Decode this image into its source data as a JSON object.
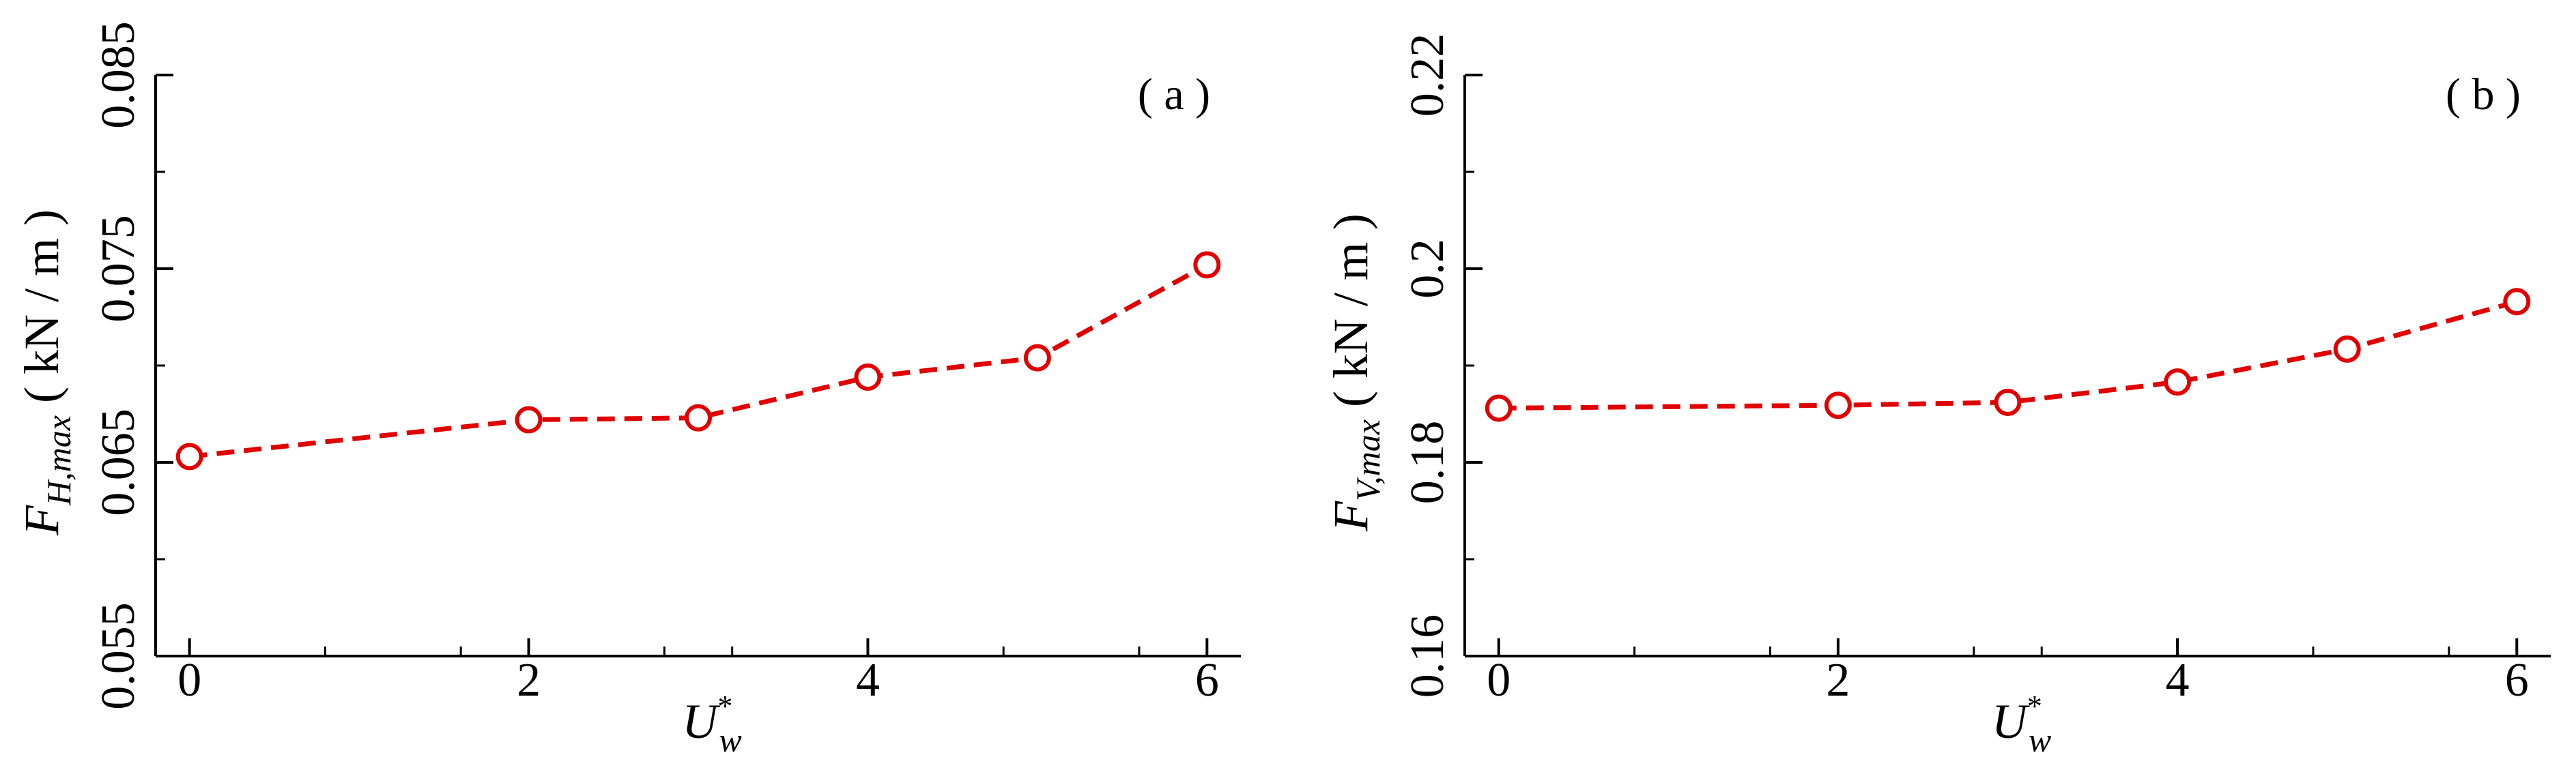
{
  "chart_data": [
    {
      "type": "line",
      "panel_label": "( a )",
      "ylabel": {
        "symbol": "F",
        "subscript": "H,max",
        "unit": " ( kN / m )"
      },
      "xlabel": {
        "symbol": "U",
        "superscript": "*",
        "subscript": "w"
      },
      "xlim": [
        -0.2,
        6.2
      ],
      "ylim": [
        0.055,
        0.085
      ],
      "xticks_major": [
        0,
        2,
        4,
        6
      ],
      "xtick_labels": [
        "0",
        "2",
        "4",
        "6"
      ],
      "xticks_minor": [
        0.8,
        1.6,
        2.8,
        3.2,
        4.8,
        5.6
      ],
      "yticks_major": [
        0.055,
        0.065,
        0.075,
        0.085
      ],
      "ytick_labels": [
        "0.055",
        "0.065",
        "0.075",
        "0.085"
      ],
      "yticks_minor": [
        0.06,
        0.07,
        0.08
      ],
      "color": "#e00000",
      "line_style": "dashed",
      "marker": "open-circle",
      "x": [
        0,
        2,
        3,
        4,
        5,
        6
      ],
      "y": [
        0.0653,
        0.0672,
        0.0673,
        0.0694,
        0.0704,
        0.0752
      ]
    },
    {
      "type": "line",
      "panel_label": "( b )",
      "ylabel": {
        "symbol": "F",
        "subscript": "V,max",
        "unit": " ( kN / m )"
      },
      "xlabel": {
        "symbol": "U",
        "superscript": "*",
        "subscript": "w"
      },
      "xlim": [
        -0.2,
        6.2
      ],
      "ylim": [
        0.16,
        0.22
      ],
      "xticks_major": [
        0,
        2,
        4,
        6
      ],
      "xtick_labels": [
        "0",
        "2",
        "4",
        "6"
      ],
      "xticks_minor": [
        0.8,
        1.6,
        2.8,
        3.2,
        4.8,
        5.6
      ],
      "yticks_major": [
        0.16,
        0.18,
        0.2,
        0.22
      ],
      "ytick_labels": [
        "0.16",
        "0.18",
        "0.2",
        "0.22"
      ],
      "yticks_minor": [
        0.17,
        0.19,
        0.21
      ],
      "color": "#e00000",
      "line_style": "dashed",
      "marker": "open-circle",
      "x": [
        0,
        2,
        3,
        4,
        5,
        6
      ],
      "y": [
        0.1856,
        0.1859,
        0.1862,
        0.1883,
        0.1917,
        0.1966
      ]
    }
  ]
}
